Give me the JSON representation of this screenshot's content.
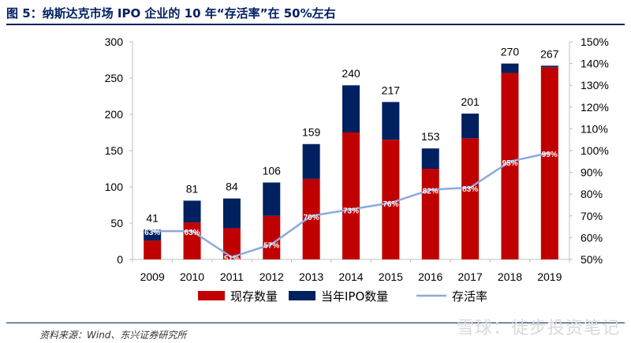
{
  "figure": {
    "title": "图 5：纳斯达克市场 IPO 企业的 10 年“存活率”在 50%左右",
    "source": "资料来源：Wind、东兴证券研究所",
    "watermark": "雪球：徒步投资笔记"
  },
  "chart_data": {
    "type": "bar",
    "stacked": true,
    "categories": [
      "2009",
      "2010",
      "2011",
      "2012",
      "2013",
      "2014",
      "2015",
      "2016",
      "2017",
      "2018",
      "2019"
    ],
    "totals": [
      41,
      81,
      84,
      106,
      159,
      240,
      217,
      153,
      201,
      270,
      267
    ],
    "series": [
      {
        "name": "现存数量",
        "color": "#c00000",
        "axis": "left",
        "values": [
          26,
          51,
          43,
          60,
          111,
          175,
          165,
          125,
          167,
          257,
          265
        ]
      },
      {
        "name": "当年IPO数量",
        "color": "#002060",
        "axis": "left",
        "values": [
          15,
          30,
          41,
          46,
          48,
          65,
          52,
          28,
          34,
          13,
          2
        ]
      },
      {
        "name": "存活率",
        "color": "#8ea9db",
        "type": "line",
        "axis": "right",
        "values": [
          63,
          63,
          51,
          57,
          70,
          73,
          76,
          82,
          83,
          95,
          99
        ],
        "labels": [
          "63%",
          "63%",
          "51%",
          "57%",
          "70%",
          "73%",
          "76%",
          "82%",
          "83%",
          "95%",
          "99%"
        ]
      }
    ],
    "y_left": {
      "min": 0,
      "max": 300,
      "ticks": [
        "0",
        "50",
        "100",
        "150",
        "200",
        "250",
        "300"
      ]
    },
    "y_right": {
      "min": 50,
      "max": 150,
      "ticks": [
        "50%",
        "60%",
        "70%",
        "80%",
        "90%",
        "100%",
        "110%",
        "120%",
        "130%",
        "140%",
        "150%"
      ]
    },
    "legend": {
      "position": "bottom",
      "items": [
        "现存数量",
        "当年IPO数量",
        "存活率"
      ]
    },
    "grid": false
  }
}
